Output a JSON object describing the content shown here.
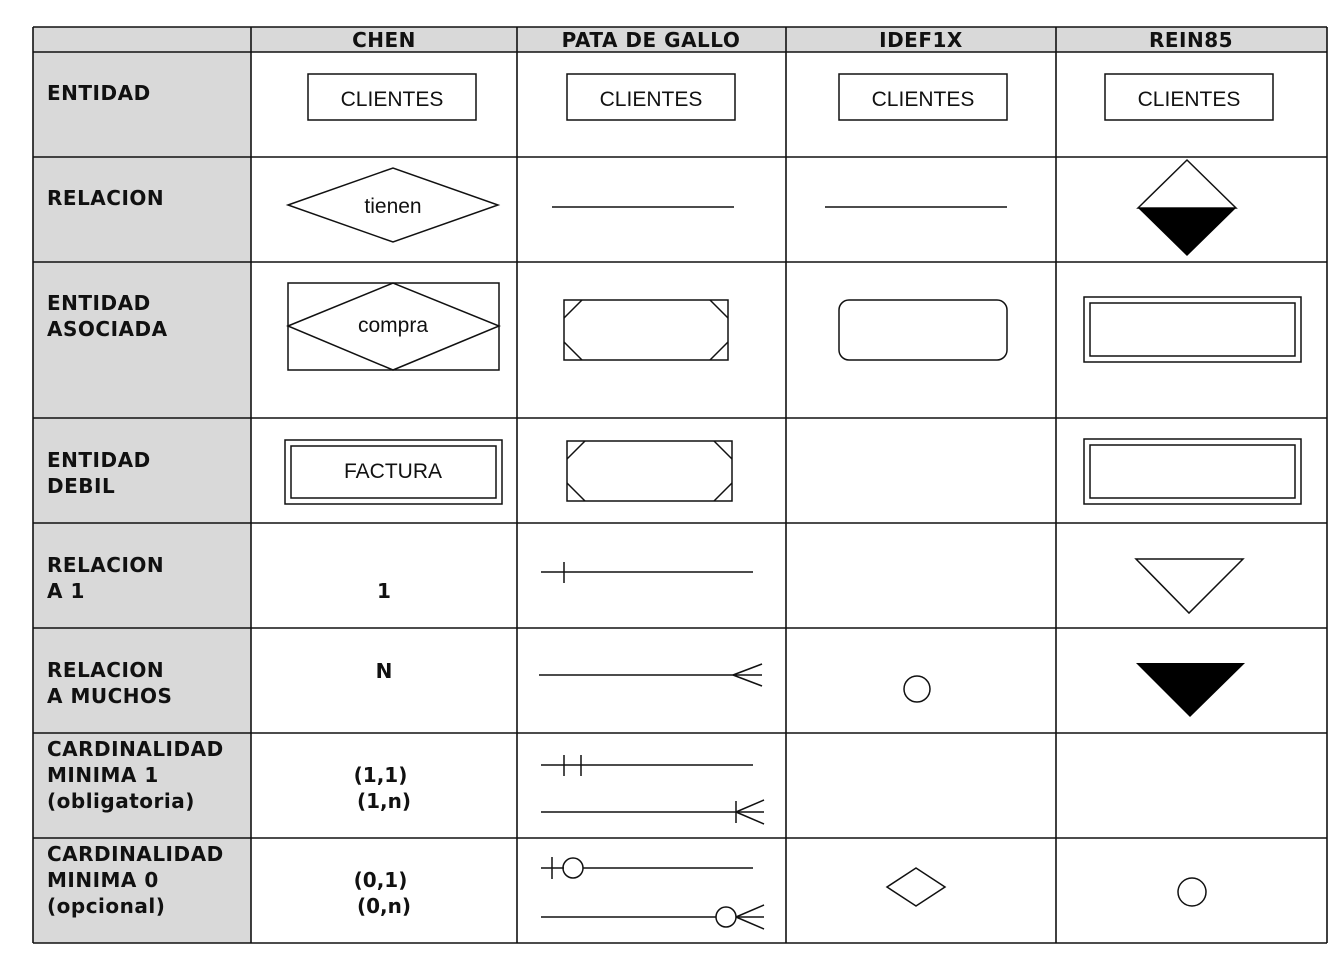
{
  "headers": [
    "CHEN",
    "PATA DE GALLO",
    "IDEF1X",
    "REIN85"
  ],
  "row_labels": [
    [
      "ENTIDAD"
    ],
    [
      "RELACION"
    ],
    [
      "ENTIDAD",
      "ASOCIADA"
    ],
    [
      "ENTIDAD",
      "DEBIL"
    ],
    [
      "RELACION",
      "A 1"
    ],
    [
      "RELACION",
      "A MUCHOS"
    ],
    [
      "CARDINALIDAD",
      "MINIMA 1",
      "(obligatoria)"
    ],
    [
      "CARDINALIDAD",
      "MINIMA 0",
      "(opcional)"
    ]
  ],
  "symbols": {
    "entity_name": "CLIENTES",
    "relation_name": "tienen",
    "associated_entity_name": "compra",
    "weak_entity_name": "FACTURA"
  },
  "chen_cardinality": {
    "to_one": "1",
    "to_many": "N",
    "min_one": [
      "(1,1)",
      "(1,n)"
    ],
    "min_zero": [
      "(0,1)",
      "(0,n)"
    ]
  },
  "colors": {
    "label_column_bg": "#d9d9d9",
    "line": "#111111",
    "fill_black": "#000000"
  }
}
